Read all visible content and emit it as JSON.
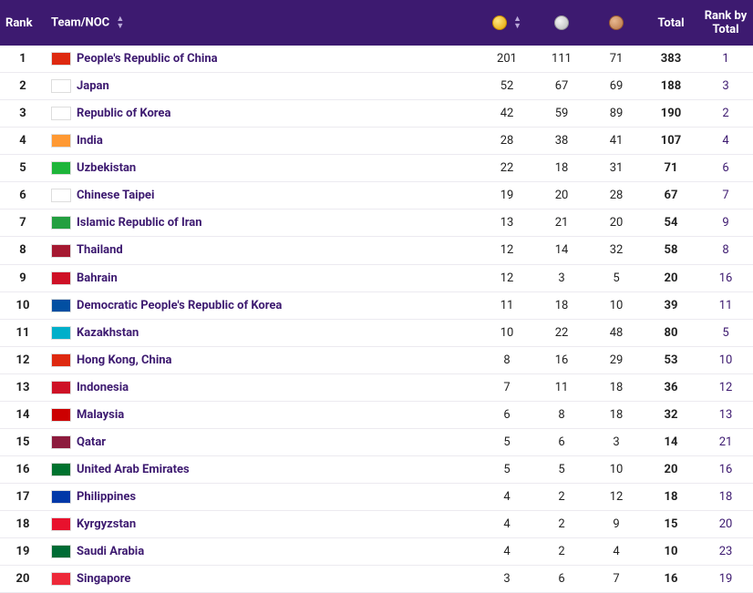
{
  "header": {
    "rank": "Rank",
    "team": "Team/NOC",
    "total": "Total",
    "rank_by_total": "Rank by Total"
  },
  "medal_colors": {
    "gold": "#e5a200",
    "silver": "#b8b8b8",
    "bronze": "#b87444"
  },
  "header_bg": "#3d1a70",
  "link_color": "#3d1a70",
  "rows": [
    {
      "rank": 1,
      "team": "People's Republic of China",
      "flag": "#de2910",
      "gold": 201,
      "silver": 111,
      "bronze": 71,
      "total": 383,
      "rank_by_total": 1
    },
    {
      "rank": 2,
      "team": "Japan",
      "flag": "#ffffff",
      "gold": 52,
      "silver": 67,
      "bronze": 69,
      "total": 188,
      "rank_by_total": 3
    },
    {
      "rank": 3,
      "team": "Republic of Korea",
      "flag": "#ffffff",
      "gold": 42,
      "silver": 59,
      "bronze": 89,
      "total": 190,
      "rank_by_total": 2
    },
    {
      "rank": 4,
      "team": "India",
      "flag": "#ff9933",
      "gold": 28,
      "silver": 38,
      "bronze": 41,
      "total": 107,
      "rank_by_total": 4
    },
    {
      "rank": 5,
      "team": "Uzbekistan",
      "flag": "#1eb53a",
      "gold": 22,
      "silver": 18,
      "bronze": 31,
      "total": 71,
      "rank_by_total": 6
    },
    {
      "rank": 6,
      "team": "Chinese Taipei",
      "flag": "#ffffff",
      "gold": 19,
      "silver": 20,
      "bronze": 28,
      "total": 67,
      "rank_by_total": 7
    },
    {
      "rank": 7,
      "team": "Islamic Republic of Iran",
      "flag": "#239f40",
      "gold": 13,
      "silver": 21,
      "bronze": 20,
      "total": 54,
      "rank_by_total": 9
    },
    {
      "rank": 8,
      "team": "Thailand",
      "flag": "#a51931",
      "gold": 12,
      "silver": 14,
      "bronze": 32,
      "total": 58,
      "rank_by_total": 8
    },
    {
      "rank": 9,
      "team": "Bahrain",
      "flag": "#ce1126",
      "gold": 12,
      "silver": 3,
      "bronze": 5,
      "total": 20,
      "rank_by_total": 16
    },
    {
      "rank": 10,
      "team": "Democratic People's Republic of Korea",
      "flag": "#024fa2",
      "gold": 11,
      "silver": 18,
      "bronze": 10,
      "total": 39,
      "rank_by_total": 11
    },
    {
      "rank": 11,
      "team": "Kazakhstan",
      "flag": "#00afca",
      "gold": 10,
      "silver": 22,
      "bronze": 48,
      "total": 80,
      "rank_by_total": 5
    },
    {
      "rank": 12,
      "team": "Hong Kong, China",
      "flag": "#de2910",
      "gold": 8,
      "silver": 16,
      "bronze": 29,
      "total": 53,
      "rank_by_total": 10
    },
    {
      "rank": 13,
      "team": "Indonesia",
      "flag": "#ce1126",
      "gold": 7,
      "silver": 11,
      "bronze": 18,
      "total": 36,
      "rank_by_total": 12
    },
    {
      "rank": 14,
      "team": "Malaysia",
      "flag": "#cc0001",
      "gold": 6,
      "silver": 8,
      "bronze": 18,
      "total": 32,
      "rank_by_total": 13
    },
    {
      "rank": 15,
      "team": "Qatar",
      "flag": "#8d1b3d",
      "gold": 5,
      "silver": 6,
      "bronze": 3,
      "total": 14,
      "rank_by_total": 21
    },
    {
      "rank": 16,
      "team": "United Arab Emirates",
      "flag": "#00732f",
      "gold": 5,
      "silver": 5,
      "bronze": 10,
      "total": 20,
      "rank_by_total": 16
    },
    {
      "rank": 17,
      "team": "Philippines",
      "flag": "#0038a8",
      "gold": 4,
      "silver": 2,
      "bronze": 12,
      "total": 18,
      "rank_by_total": 18
    },
    {
      "rank": 18,
      "team": "Kyrgyzstan",
      "flag": "#e8112d",
      "gold": 4,
      "silver": 2,
      "bronze": 9,
      "total": 15,
      "rank_by_total": 20
    },
    {
      "rank": 19,
      "team": "Saudi Arabia",
      "flag": "#006c35",
      "gold": 4,
      "silver": 2,
      "bronze": 4,
      "total": 10,
      "rank_by_total": 23
    },
    {
      "rank": 20,
      "team": "Singapore",
      "flag": "#ed2939",
      "gold": 3,
      "silver": 6,
      "bronze": 7,
      "total": 16,
      "rank_by_total": 19
    }
  ]
}
